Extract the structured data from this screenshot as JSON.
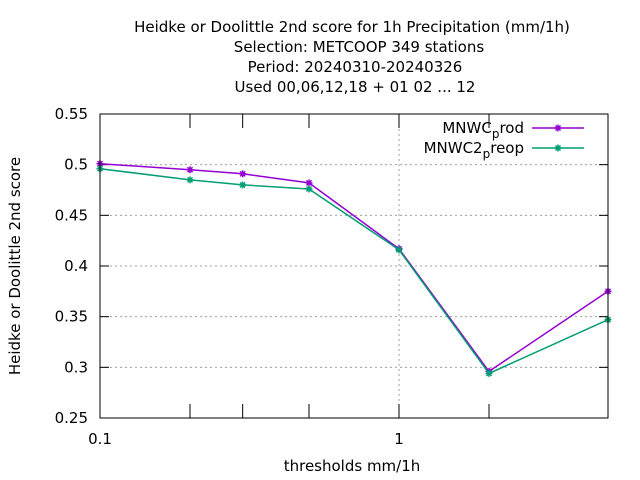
{
  "chart_data": {
    "type": "line",
    "title_lines": [
      "Heidke or Doolittle 2nd score  for 1h Precipitation (mm/1h)",
      "Selection: METCOOP    349 stations",
      "Period: 20240310-20240326",
      "Used  00,06,12,18 + 01 02 ... 12"
    ],
    "xlabel": "thresholds mm/1h",
    "ylabel": "Heidke or Doolittle 2nd score",
    "x_scale": "log",
    "xlim": [
      0.1,
      5
    ],
    "ylim": [
      0.25,
      0.55
    ],
    "x_ticks": [
      0.1,
      1
    ],
    "x_tick_labels": [
      "0.1",
      "1"
    ],
    "x_minor_ticks": [
      0.2,
      0.3,
      0.5,
      2
    ],
    "y_ticks": [
      0.25,
      0.3,
      0.35,
      0.4,
      0.45,
      0.5,
      0.55
    ],
    "y_tick_labels": [
      "0.25",
      "0.3",
      "0.35",
      "0.4",
      "0.45",
      "0.5",
      "0.55"
    ],
    "grid": true,
    "legend_position": "top-right",
    "x": [
      0.1,
      0.2,
      0.3,
      0.5,
      1,
      2,
      5
    ],
    "series": [
      {
        "name": "MNWC_prod",
        "legend_main": "MNWC",
        "legend_sub": "p",
        "legend_rest": "rod",
        "color": "#9400d3",
        "values": [
          0.501,
          0.495,
          0.491,
          0.482,
          0.417,
          0.296,
          0.375
        ]
      },
      {
        "name": "MNWC2_preop",
        "legend_main": "MNWC2",
        "legend_sub": "p",
        "legend_rest": "reop",
        "color": "#009e73",
        "values": [
          0.496,
          0.485,
          0.48,
          0.476,
          0.416,
          0.294,
          0.347
        ]
      }
    ]
  }
}
